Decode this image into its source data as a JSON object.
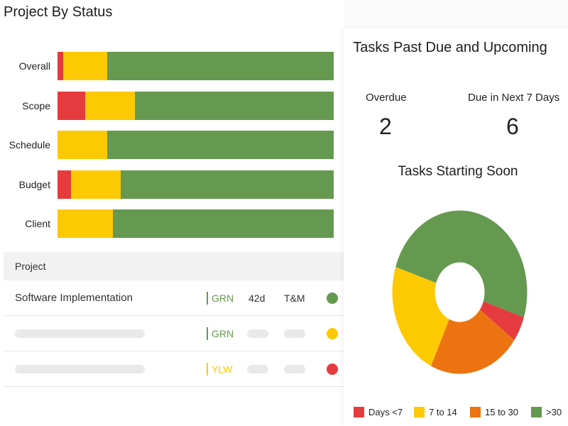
{
  "colors": {
    "red": "#e53b3f",
    "yellow": "#fdc902",
    "green": "#65994f",
    "orange": "#ed7310"
  },
  "page_title": "Project By Status",
  "status_bars": [
    {
      "label": "Overall",
      "red": 2,
      "yellow": 16,
      "green": 82
    },
    {
      "label": "Scope",
      "red": 10,
      "yellow": 18,
      "green": 72
    },
    {
      "label": "Schedule",
      "red": 0,
      "yellow": 18,
      "green": 82
    },
    {
      "label": "Budget",
      "red": 5,
      "yellow": 18,
      "green": 77
    },
    {
      "label": "Client",
      "red": 0,
      "yellow": 20,
      "green": 80
    }
  ],
  "table": {
    "header": "Project",
    "rows": [
      {
        "name": "Software Implementation",
        "status": "GRN",
        "duration": "42d",
        "type": "T&M",
        "health": "green"
      },
      {
        "name": "",
        "status": "GRN",
        "duration": "",
        "type": "",
        "health": "yellow"
      },
      {
        "name": "",
        "status": "YLW",
        "duration": "",
        "type": "",
        "health": "red"
      }
    ]
  },
  "tasks": {
    "title": "Tasks Past Due and Upcoming",
    "overdue_label": "Overdue",
    "overdue_value": "2",
    "due_label": "Due in Next 7 Days",
    "due_value": "6"
  },
  "starting_soon": {
    "title": "Tasks Starting Soon",
    "legend": [
      {
        "label": "Days <7",
        "color": "red"
      },
      {
        "label": "7 to 14",
        "color": "yellow"
      },
      {
        "label": "15 to 30",
        "color": "orange"
      },
      {
        "label": ">30",
        "color": "green"
      }
    ]
  },
  "chart_data": {
    "type": "pie",
    "title": "Tasks Starting Soon",
    "categories": [
      "Days <7",
      "7 to 14",
      "15 to 30",
      ">30"
    ],
    "values": [
      5,
      23,
      22,
      50
    ],
    "donut": true
  }
}
